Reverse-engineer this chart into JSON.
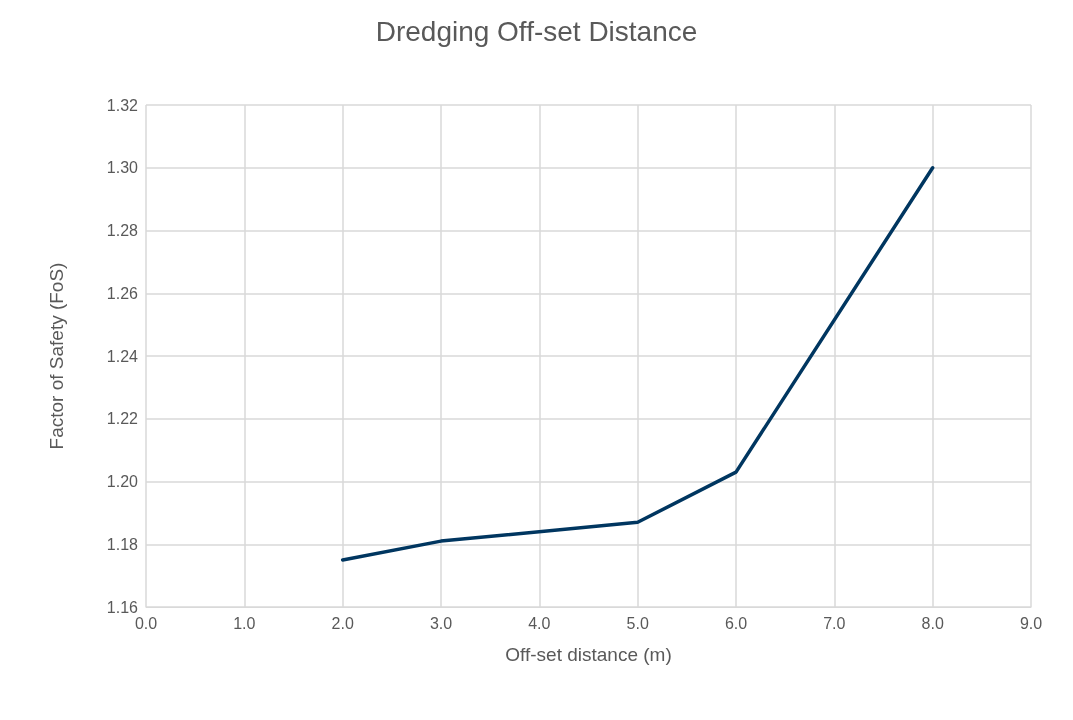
{
  "chart_data": {
    "type": "line",
    "title": "Dredging Off-set Distance",
    "xlabel": "Off-set distance (m)",
    "ylabel": "Factor of Safety (FoS)",
    "x": [
      2,
      3,
      5,
      6,
      8
    ],
    "series": [
      {
        "color": "#003660",
        "values": [
          1.175,
          1.181,
          1.187,
          1.203,
          1.3
        ]
      }
    ],
    "xlim": [
      0,
      9
    ],
    "xticks": [
      {
        "value": 0,
        "label": "0.0"
      },
      {
        "value": 1,
        "label": "1.0"
      },
      {
        "value": 2,
        "label": "2.0"
      },
      {
        "value": 3,
        "label": "3.0"
      },
      {
        "value": 4,
        "label": "4.0"
      },
      {
        "value": 5,
        "label": "5.0"
      },
      {
        "value": 6,
        "label": "6.0"
      },
      {
        "value": 7,
        "label": "7.0"
      },
      {
        "value": 8,
        "label": "8.0"
      },
      {
        "value": 9,
        "label": "9.0"
      }
    ],
    "ylim": [
      1.16,
      1.32
    ],
    "yticks": [
      {
        "value": 1.16,
        "label": "1.16"
      },
      {
        "value": 1.18,
        "label": "1.18"
      },
      {
        "value": 1.2,
        "label": "1.20"
      },
      {
        "value": 1.22,
        "label": "1.22"
      },
      {
        "value": 1.24,
        "label": "1.24"
      },
      {
        "value": 1.26,
        "label": "1.26"
      },
      {
        "value": 1.28,
        "label": "1.28"
      },
      {
        "value": 1.3,
        "label": "1.30"
      },
      {
        "value": 1.32,
        "label": "1.32"
      }
    ],
    "grid": true,
    "marker": "none",
    "line_style": "solid"
  }
}
